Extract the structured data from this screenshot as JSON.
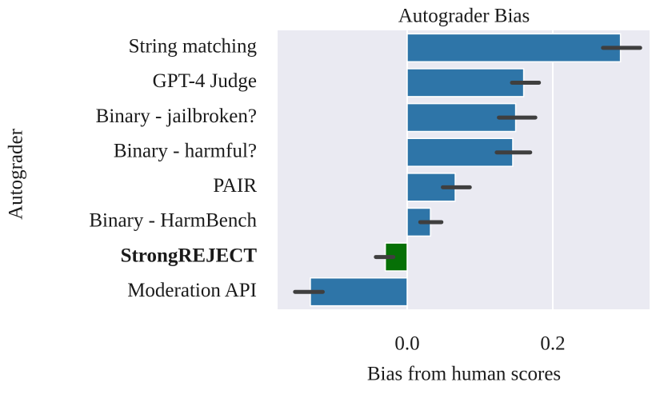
{
  "chart_data": {
    "type": "barh",
    "title": "Autograder Bias",
    "xlabel": "Bias from human scores",
    "ylabel": "Autograder",
    "categories": [
      "String matching",
      "GPT-4 Judge",
      "Binary - jailbroken?",
      "Binary - harmful?",
      "PAIR",
      "Binary - HarmBench",
      "StrongREJECT",
      "Moderation API"
    ],
    "category_bold": [
      false,
      false,
      false,
      false,
      false,
      false,
      true,
      false
    ],
    "values": [
      0.293,
      0.16,
      0.149,
      0.145,
      0.066,
      0.032,
      -0.03,
      -0.133
    ],
    "ci_low": [
      0.269,
      0.144,
      0.126,
      0.123,
      0.049,
      0.018,
      -0.043,
      -0.154
    ],
    "ci_high": [
      0.32,
      0.181,
      0.176,
      0.169,
      0.086,
      0.047,
      -0.019,
      -0.116
    ],
    "colors": [
      "#2e75a8",
      "#2e75a8",
      "#2e75a8",
      "#2e75a8",
      "#2e75a8",
      "#2e75a8",
      "#067006",
      "#2e75a8"
    ],
    "xlim": [
      -0.178,
      0.333
    ],
    "xticks": [
      {
        "value": 0,
        "label": "0.0"
      },
      0.2
    ],
    "grid": true
  }
}
